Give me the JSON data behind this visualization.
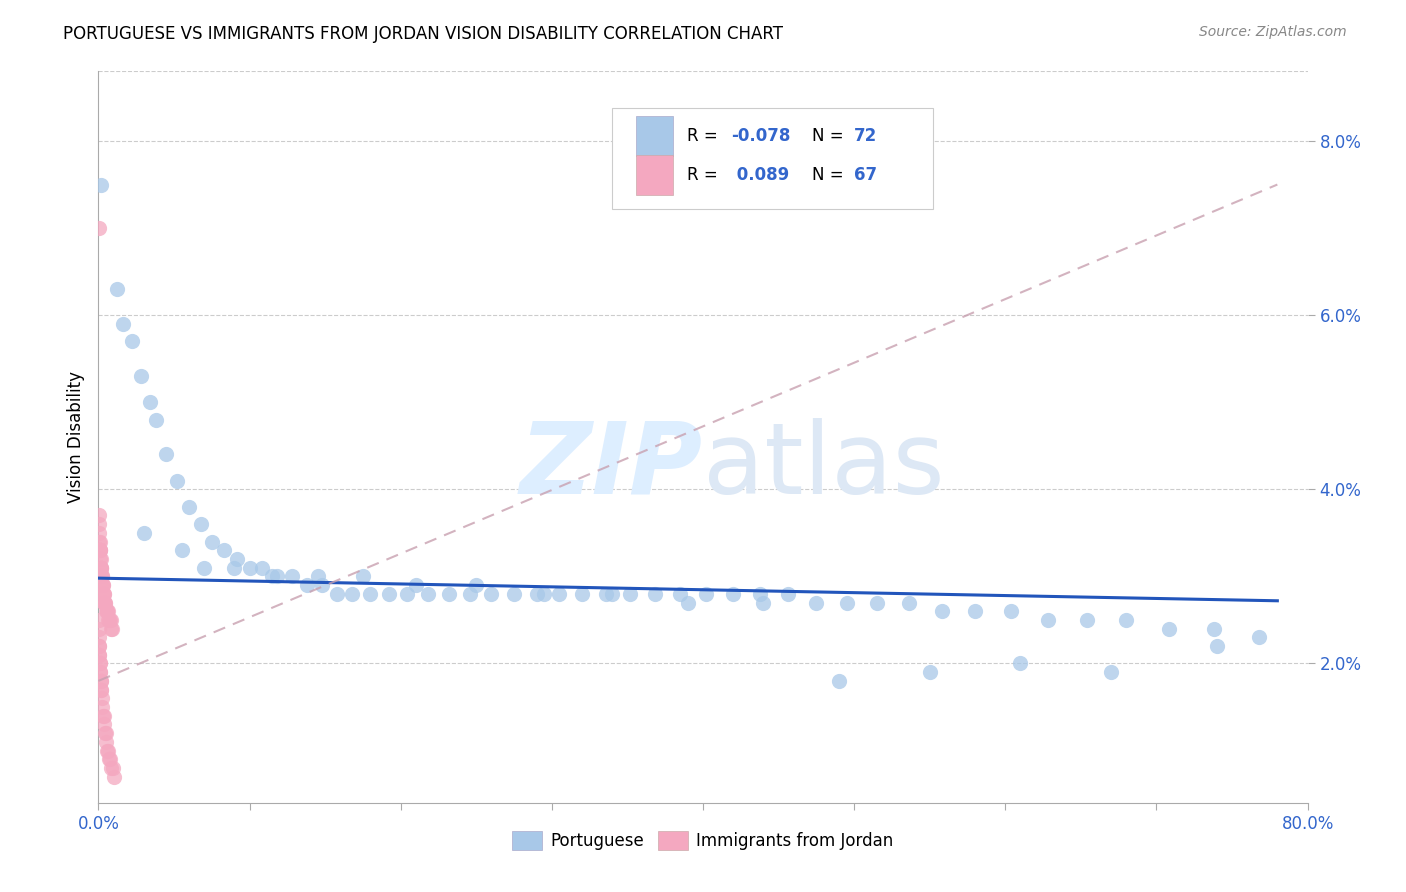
{
  "title": "PORTUGUESE VS IMMIGRANTS FROM JORDAN VISION DISABILITY CORRELATION CHART",
  "source": "Source: ZipAtlas.com",
  "ylabel": "Vision Disability",
  "ytick_vals": [
    0.02,
    0.04,
    0.06,
    0.08
  ],
  "ytick_labels": [
    "2.0%",
    "4.0%",
    "6.0%",
    "8.0%"
  ],
  "xlim": [
    0.0,
    0.8
  ],
  "ylim": [
    0.004,
    0.088
  ],
  "legend_labels": [
    "Portuguese",
    "Immigrants from Jordan"
  ],
  "blue_color": "#a8c8e8",
  "pink_color": "#f4a8c0",
  "line_blue": "#2255bb",
  "line_pink": "#c8a0b0",
  "portuguese_x": [
    0.002,
    0.012,
    0.016,
    0.022,
    0.028,
    0.034,
    0.038,
    0.045,
    0.052,
    0.06,
    0.068,
    0.075,
    0.083,
    0.092,
    0.1,
    0.108,
    0.118,
    0.128,
    0.138,
    0.148,
    0.158,
    0.168,
    0.18,
    0.192,
    0.204,
    0.218,
    0.232,
    0.246,
    0.26,
    0.275,
    0.29,
    0.305,
    0.32,
    0.336,
    0.352,
    0.368,
    0.385,
    0.402,
    0.42,
    0.438,
    0.456,
    0.475,
    0.495,
    0.515,
    0.536,
    0.558,
    0.58,
    0.604,
    0.628,
    0.654,
    0.68,
    0.708,
    0.738,
    0.768,
    0.03,
    0.055,
    0.07,
    0.09,
    0.115,
    0.145,
    0.175,
    0.21,
    0.25,
    0.295,
    0.34,
    0.39,
    0.44,
    0.49,
    0.55,
    0.61,
    0.67,
    0.74
  ],
  "portuguese_y": [
    0.075,
    0.063,
    0.059,
    0.057,
    0.053,
    0.05,
    0.048,
    0.044,
    0.041,
    0.038,
    0.036,
    0.034,
    0.033,
    0.032,
    0.031,
    0.031,
    0.03,
    0.03,
    0.029,
    0.029,
    0.028,
    0.028,
    0.028,
    0.028,
    0.028,
    0.028,
    0.028,
    0.028,
    0.028,
    0.028,
    0.028,
    0.028,
    0.028,
    0.028,
    0.028,
    0.028,
    0.028,
    0.028,
    0.028,
    0.028,
    0.028,
    0.027,
    0.027,
    0.027,
    0.027,
    0.026,
    0.026,
    0.026,
    0.025,
    0.025,
    0.025,
    0.024,
    0.024,
    0.023,
    0.035,
    0.033,
    0.031,
    0.031,
    0.03,
    0.03,
    0.03,
    0.029,
    0.029,
    0.028,
    0.028,
    0.027,
    0.027,
    0.018,
    0.019,
    0.02,
    0.019,
    0.022
  ],
  "jordan_x": [
    0.0002,
    0.0004,
    0.0006,
    0.0007,
    0.0008,
    0.0009,
    0.001,
    0.0011,
    0.0012,
    0.0014,
    0.0015,
    0.0016,
    0.0018,
    0.002,
    0.0022,
    0.0024,
    0.0026,
    0.0028,
    0.003,
    0.0032,
    0.0034,
    0.0036,
    0.0038,
    0.004,
    0.0043,
    0.0046,
    0.005,
    0.0054,
    0.0058,
    0.0062,
    0.0066,
    0.007,
    0.0075,
    0.008,
    0.0086,
    0.0092,
    0.0001,
    0.0002,
    0.0003,
    0.0004,
    0.0005,
    0.0006,
    0.0007,
    0.0008,
    0.0009,
    0.001,
    0.0012,
    0.0014,
    0.0016,
    0.0018,
    0.002,
    0.0023,
    0.0026,
    0.003,
    0.0034,
    0.0038,
    0.0042,
    0.0047,
    0.0052,
    0.0058,
    0.0064,
    0.007,
    0.0078,
    0.0086,
    0.0094,
    0.01,
    0.0002
  ],
  "jordan_y": [
    0.037,
    0.036,
    0.035,
    0.034,
    0.034,
    0.033,
    0.033,
    0.033,
    0.032,
    0.032,
    0.031,
    0.031,
    0.031,
    0.03,
    0.03,
    0.03,
    0.029,
    0.029,
    0.029,
    0.028,
    0.028,
    0.028,
    0.027,
    0.027,
    0.027,
    0.027,
    0.026,
    0.026,
    0.026,
    0.026,
    0.025,
    0.025,
    0.025,
    0.025,
    0.024,
    0.024,
    0.025,
    0.024,
    0.023,
    0.022,
    0.022,
    0.021,
    0.021,
    0.02,
    0.02,
    0.019,
    0.019,
    0.018,
    0.018,
    0.017,
    0.017,
    0.016,
    0.015,
    0.014,
    0.014,
    0.013,
    0.012,
    0.012,
    0.011,
    0.01,
    0.01,
    0.009,
    0.009,
    0.008,
    0.008,
    0.007,
    0.07
  ],
  "blue_line_x": [
    0.0,
    0.78
  ],
  "blue_line_y": [
    0.0298,
    0.0272
  ],
  "pink_line_x": [
    0.0,
    0.78
  ],
  "pink_line_y": [
    0.018,
    0.075
  ]
}
